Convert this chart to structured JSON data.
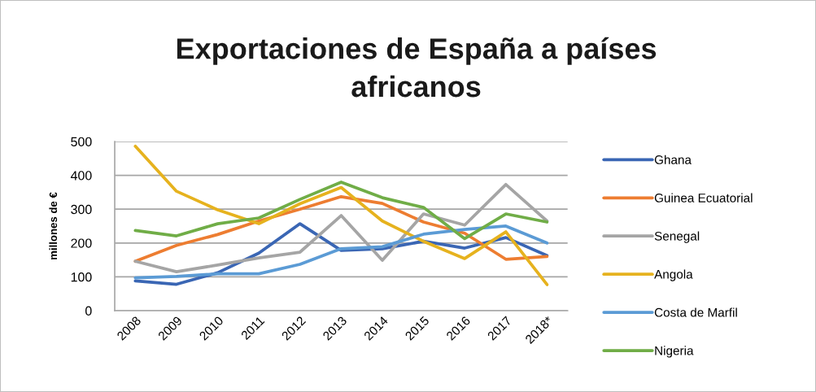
{
  "chart_data": {
    "type": "line",
    "title": "Exportaciones de España a países\nafricanos",
    "ylabel": "millones de €",
    "categories": [
      "2008",
      "2009",
      "2010",
      "2011",
      "2012",
      "2013",
      "2014",
      "2015",
      "2016",
      "2017",
      "2018*"
    ],
    "series": [
      {
        "name": "Ghana",
        "color": "#3a66b4",
        "values": [
          88,
          78,
          112,
          170,
          257,
          178,
          183,
          205,
          185,
          216,
          163
        ]
      },
      {
        "name": "Guinea Ecuatorial",
        "color": "#ed7d31",
        "values": [
          146,
          193,
          225,
          265,
          300,
          337,
          317,
          262,
          229,
          152,
          160
        ]
      },
      {
        "name": "Senegal",
        "color": "#a5a5a5",
        "values": [
          146,
          115,
          135,
          156,
          173,
          281,
          149,
          286,
          253,
          373,
          265
        ]
      },
      {
        "name": "Angola",
        "color": "#e6b21e",
        "values": [
          486,
          353,
          298,
          257,
          316,
          364,
          265,
          205,
          154,
          233,
          77
        ]
      },
      {
        "name": "Costa de Marfil",
        "color": "#5b9bd5",
        "values": [
          97,
          101,
          109,
          109,
          137,
          183,
          189,
          226,
          240,
          250,
          200
        ]
      },
      {
        "name": "Nigeria",
        "color": "#70ad47",
        "values": [
          237,
          221,
          257,
          274,
          329,
          380,
          334,
          305,
          213,
          286,
          262
        ]
      }
    ],
    "ylim": [
      0,
      500
    ],
    "yticks": [
      0,
      100,
      200,
      300,
      400,
      500
    ],
    "grid": "y",
    "legend": "right",
    "marker": "none",
    "line_style": "solid"
  }
}
